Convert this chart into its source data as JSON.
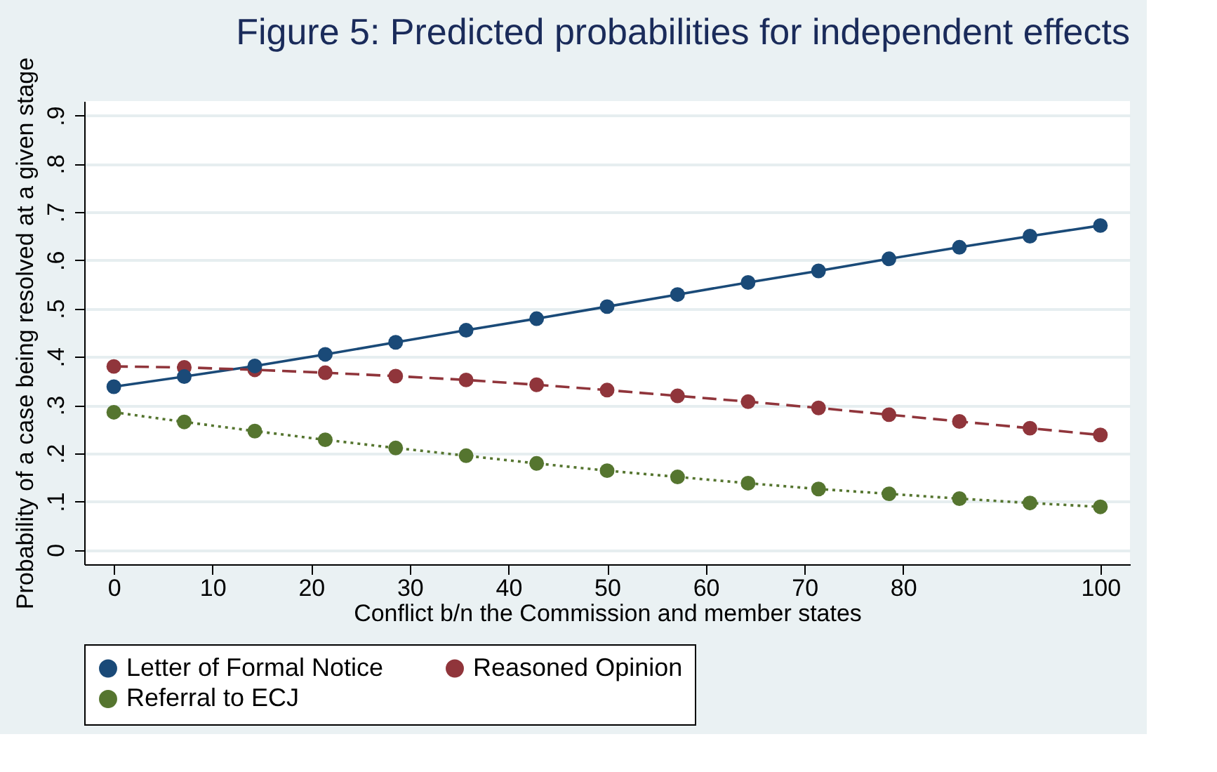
{
  "chart_data": {
    "type": "line",
    "title": "Figure 5: Predicted probabilities for independent effects",
    "xlabel": "Conflict b/n the Commission and member states",
    "ylabel": "Probability of a case being resolved at a given stage",
    "x": [
      0,
      7.14,
      14.29,
      21.43,
      28.57,
      35.71,
      42.86,
      50,
      57.14,
      64.29,
      71.43,
      78.57,
      85.71,
      92.86,
      100
    ],
    "series": [
      {
        "name": "Letter of Formal Notice",
        "color": "#1a4a78",
        "line_style": "solid",
        "values": [
          0.338,
          0.359,
          0.381,
          0.405,
          0.43,
          0.455,
          0.479,
          0.504,
          0.529,
          0.554,
          0.578,
          0.603,
          0.627,
          0.65,
          0.672
        ]
      },
      {
        "name": "Reasoned Opinion",
        "color": "#90353b",
        "line_style": "dashed",
        "values": [
          0.38,
          0.378,
          0.373,
          0.367,
          0.36,
          0.352,
          0.342,
          0.331,
          0.319,
          0.307,
          0.294,
          0.28,
          0.266,
          0.252,
          0.238
        ]
      },
      {
        "name": "Referral to ECJ",
        "color": "#55752f",
        "line_style": "dotted",
        "values": [
          0.285,
          0.265,
          0.246,
          0.228,
          0.211,
          0.195,
          0.179,
          0.164,
          0.151,
          0.138,
          0.126,
          0.116,
          0.106,
          0.097,
          0.089
        ]
      }
    ],
    "xlim": [
      -3,
      103
    ],
    "xticks": [
      0,
      10,
      20,
      30,
      40,
      50,
      60,
      70,
      80,
      100
    ],
    "ylim": [
      -0.03,
      0.93
    ],
    "yticks": [
      0,
      {
        "value": 0.1,
        "label": ".1"
      },
      {
        "value": 0.2,
        "label": ".2"
      },
      {
        "value": 0.3,
        "label": ".3"
      },
      {
        "value": 0.4,
        "label": ".4"
      },
      {
        "value": 0.5,
        "label": ".5"
      },
      {
        "value": 0.6,
        "label": ".6"
      },
      {
        "value": 0.7,
        "label": ".7"
      },
      {
        "value": 0.8,
        "label": ".8"
      },
      {
        "value": 0.9,
        "label": ".9"
      }
    ],
    "grid": "y",
    "marker": "circle",
    "legend": "bottom"
  }
}
